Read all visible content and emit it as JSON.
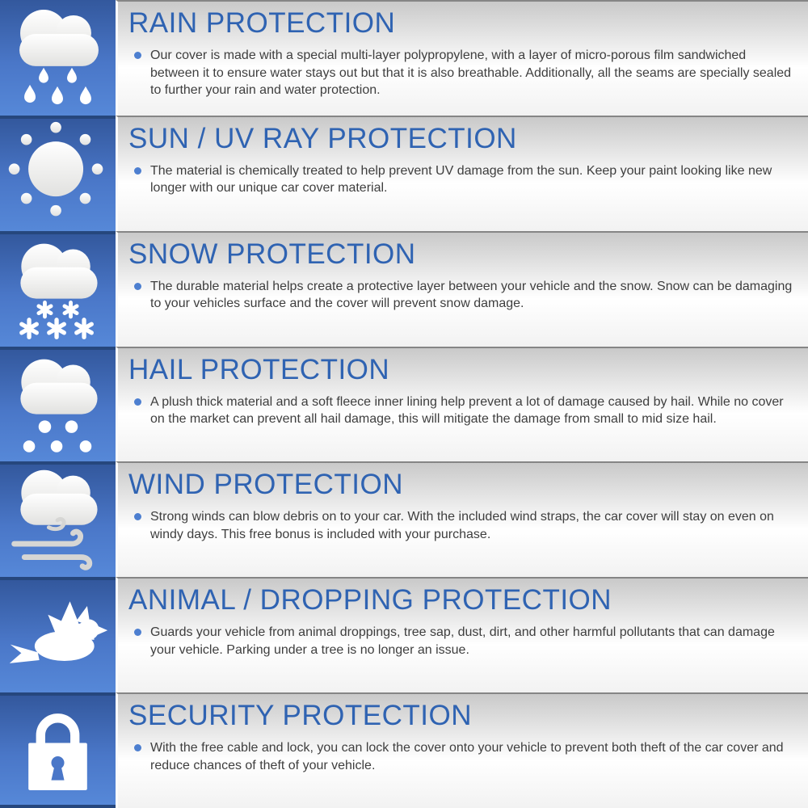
{
  "colors": {
    "icon_square_top": "#33589d",
    "icon_square_bottom": "#5688d8",
    "square_separator": "#26477d",
    "title_blue": "#2f63b2",
    "body_text": "#3e3e3e",
    "bullet_blue": "#4d7fd0",
    "band_gray_top": "#c9c9c9"
  },
  "sections": [
    {
      "id": "rain",
      "icon": "rain-cloud-icon",
      "title": "RAIN PROTECTION",
      "body": "Our cover is made with a special multi-layer polypropylene, with a layer of micro-porous film sandwiched between it to ensure water stays out but that it is also breathable. Additionally, all the seams are specially sealed to further your rain and water protection."
    },
    {
      "id": "sun",
      "icon": "sun-icon",
      "title": "SUN / UV RAY PROTECTION",
      "body": "The material is chemically treated to help prevent UV damage from the sun. Keep your paint looking like new longer with our unique car cover material."
    },
    {
      "id": "snow",
      "icon": "snow-cloud-icon",
      "title": "SNOW PROTECTION",
      "body": "The durable material helps create a protective layer between your vehicle and the snow. Snow can be damaging to your vehicles surface and the cover will prevent snow damage."
    },
    {
      "id": "hail",
      "icon": "hail-cloud-icon",
      "title": "HAIL PROTECTION",
      "body": "A plush thick material and a soft fleece inner lining help prevent a lot of damage caused by hail. While no cover on the market can prevent all hail damage, this will mitigate the damage from small to mid size hail."
    },
    {
      "id": "wind",
      "icon": "wind-cloud-icon",
      "title": "WIND PROTECTION",
      "body": "Strong winds can blow debris on to your car. With the included wind straps, the car cover will stay on even on windy days. This free bonus is included with your purchase."
    },
    {
      "id": "animal",
      "icon": "bird-icon",
      "title": "ANIMAL / DROPPING PROTECTION",
      "body": "Guards your vehicle from animal droppings, tree sap, dust, dirt, and other harmful pollutants that can damage your vehicle. Parking under a tree is no longer an issue."
    },
    {
      "id": "security",
      "icon": "padlock-icon",
      "title": "SECURITY PROTECTION",
      "body": "With the free cable and lock, you can lock the cover onto your vehicle to prevent both theft of the car cover and reduce chances of theft of your vehicle."
    }
  ]
}
